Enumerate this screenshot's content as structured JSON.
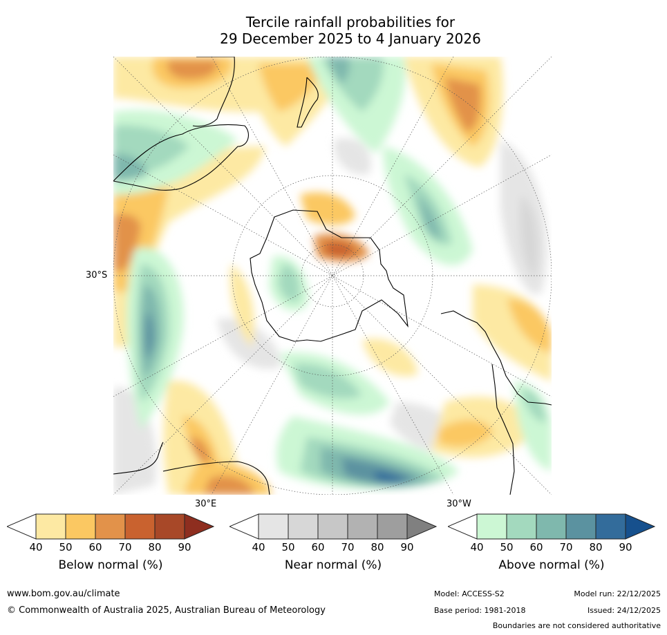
{
  "title": {
    "line1": "Tercile rainfall probabilities for",
    "line2": "29 December 2025 to 4 January 2026"
  },
  "map": {
    "lat_label": "30°S",
    "lon_labels": {
      "east": "30°E",
      "west": "30°W"
    },
    "colors": {
      "below": [
        "#fde9a3",
        "#fbc862",
        "#e2924a",
        "#c9622f",
        "#a84828",
        "#8e2e1f"
      ],
      "near": [
        "#e5e5e5",
        "#d7d7d7",
        "#c7c7c7",
        "#b2b2b2",
        "#9e9e9e",
        "#808080"
      ],
      "above": [
        "#ccf7d4",
        "#a3d9be",
        "#7fb8ad",
        "#5b92a0",
        "#336c9b",
        "#16508d"
      ],
      "coast": "#000000"
    }
  },
  "legends": [
    {
      "title": "Below normal (%)",
      "ticks": [
        "40",
        "50",
        "60",
        "70",
        "80",
        "90"
      ]
    },
    {
      "title": "Near normal (%)",
      "ticks": [
        "40",
        "50",
        "60",
        "70",
        "80",
        "90"
      ]
    },
    {
      "title": "Above normal (%)",
      "ticks": [
        "40",
        "50",
        "60",
        "70",
        "80",
        "90"
      ]
    }
  ],
  "footer": {
    "url": "www.bom.gov.au/climate",
    "copyright": "© Commonwealth of Australia 2025, Australian Bureau of Meteorology",
    "model": "Model: ACCESS-S2",
    "base_period": "Base period: 1981-2018",
    "model_run": "Model run: 22/12/2025",
    "issued": "Issued: 24/12/2025",
    "disclaimer": "Boundaries are not considered authoritative"
  }
}
